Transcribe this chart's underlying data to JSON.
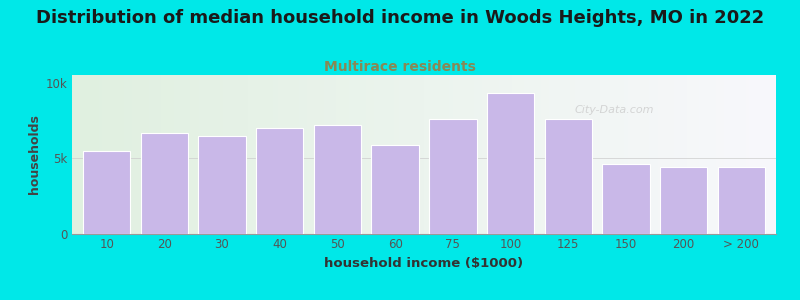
{
  "title": "Distribution of median household income in Woods Heights, MO in 2022",
  "subtitle": "Multirace residents",
  "xlabel": "household income ($1000)",
  "ylabel": "households",
  "categories": [
    "10",
    "20",
    "30",
    "40",
    "50",
    "60",
    "75",
    "100",
    "125",
    "150",
    "200",
    "> 200"
  ],
  "values": [
    5500,
    6700,
    6500,
    7000,
    7200,
    5900,
    7600,
    9300,
    7600,
    4600,
    4400,
    4400
  ],
  "bar_color": "#c9b8e8",
  "bar_edge_color": "white",
  "background_outer": "#00e8e8",
  "yticks": [
    0,
    5000,
    10000
  ],
  "ytick_labels": [
    "0",
    "5k",
    "10k"
  ],
  "ylim": [
    0,
    10500
  ],
  "title_fontsize": 13,
  "subtitle_fontsize": 10,
  "subtitle_color": "#888855",
  "watermark": "City-Data.com",
  "bg_left_color": "#e0f0e0",
  "bg_right_color": "#f8f8fc"
}
